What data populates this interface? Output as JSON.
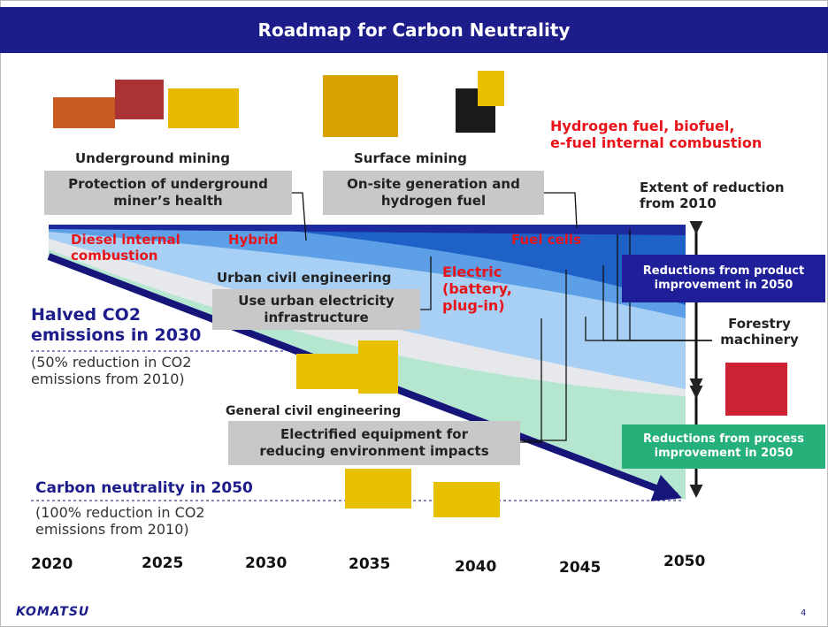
{
  "header": {
    "title": "Roadmap for Carbon Neutrality"
  },
  "sectors": [
    "Underground mining",
    "Surface mining",
    "Urban civil engineering",
    "General civil engineering",
    "Forestry machinery"
  ],
  "measures": [
    "Protection of underground\nminer’s health",
    "On-site generation and\nhydrogen fuel",
    "Use urban electricity\ninfrastructure",
    "Electrified equipment for\nreducing environment impacts"
  ],
  "technologies": [
    "Diesel internal\ncombustion",
    "Hybrid",
    "Electric\n(battery,\nplug-in)",
    "Fuel cells",
    "Hydrogen fuel, biofuel,\ne-fuel internal combustion"
  ],
  "reduction": {
    "title": "Extent of reduction\nfrom 2010",
    "product": "Reductions from product\nimprovement in 2050",
    "process": "Reductions from process\nimprovement in 2050"
  },
  "milestones": [
    {
      "title": "Halved CO2\nemissions in 2030",
      "note": "(50% reduction in CO2\nemissions from 2010)"
    },
    {
      "title": "Carbon neutrality in 2050",
      "note": "(100% reduction in CO2\nemissions from 2010)"
    }
  ],
  "years": [
    "2020",
    "2025",
    "2030",
    "2035",
    "2040",
    "2045",
    "2050"
  ],
  "footer": {
    "logo": "KOMATSU",
    "page": "4"
  }
}
